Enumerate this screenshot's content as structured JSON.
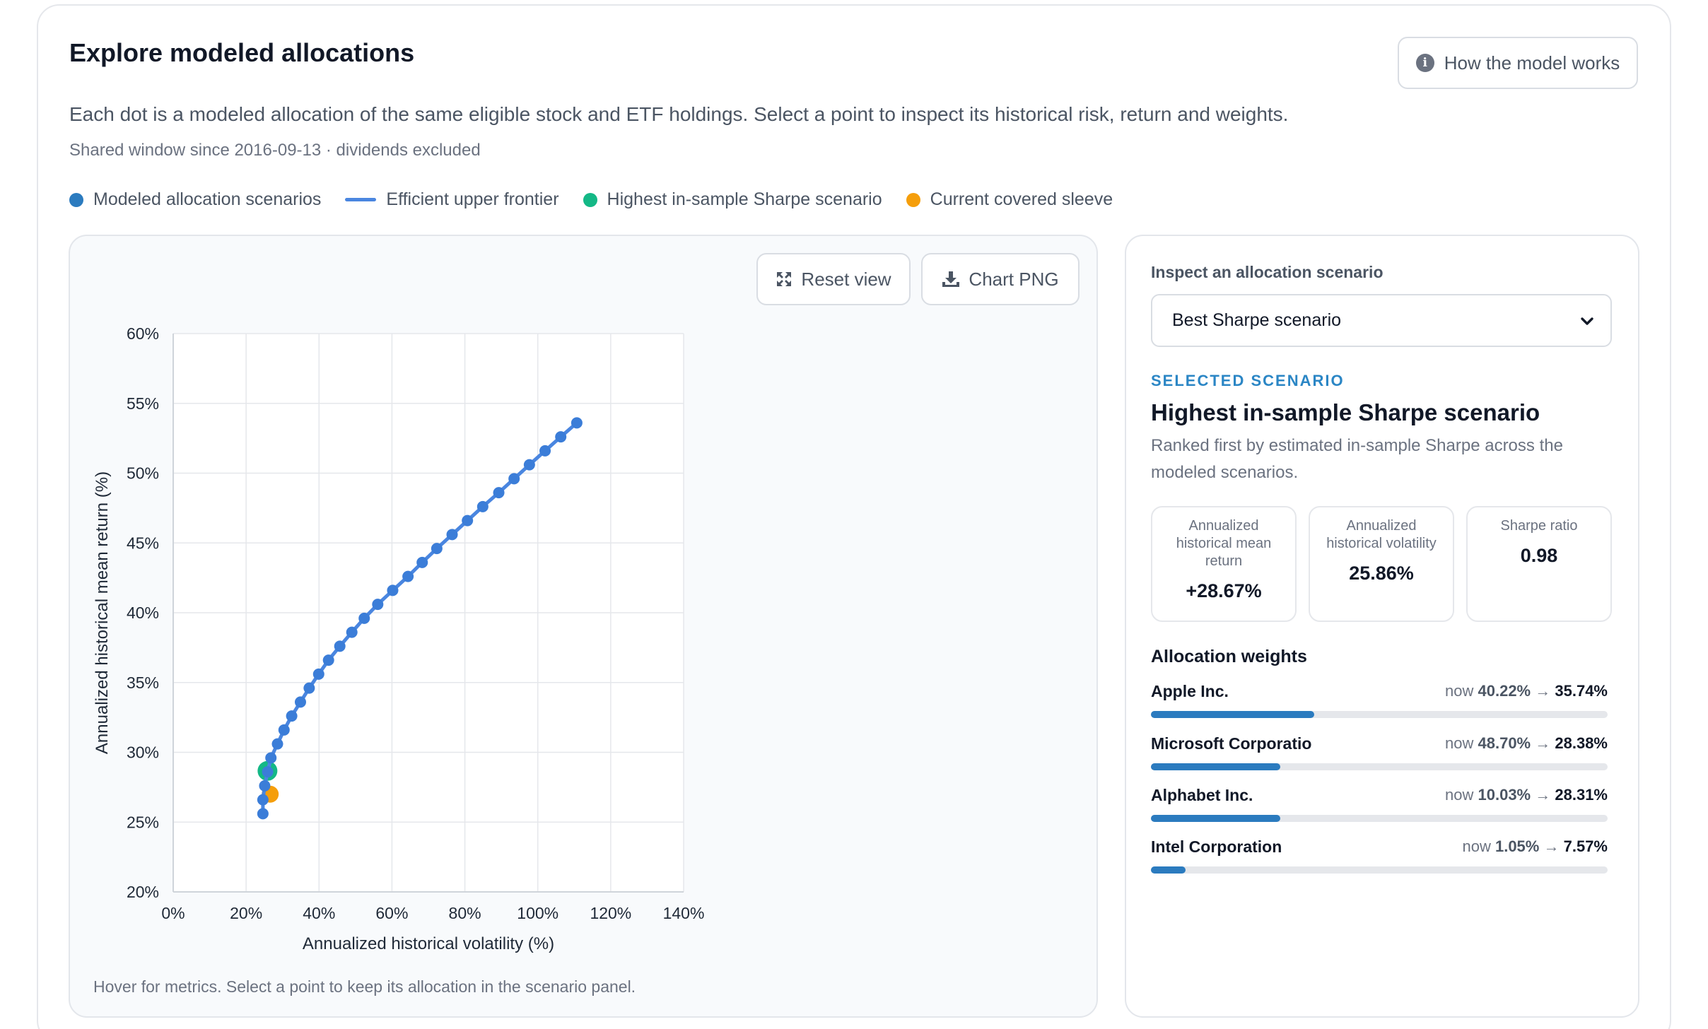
{
  "header": {
    "title": "Explore modeled allocations",
    "help_button": "How the model works",
    "description": "Each dot is a modeled allocation of the same eligible stock and ETF holdings. Select a point to inspect its historical risk, return and weights.",
    "subtitle": "Shared window since 2016-09-13 · dividends excluded"
  },
  "legend": [
    {
      "label": "Modeled allocation scenarios",
      "kind": "dot",
      "color": "#2b7bbf"
    },
    {
      "label": "Efficient upper frontier",
      "kind": "line",
      "color": "#4a86e0"
    },
    {
      "label": "Highest in-sample Sharpe scenario",
      "kind": "dot",
      "color": "#14b886"
    },
    {
      "label": "Current covered sleeve",
      "kind": "dot",
      "color": "#f59e0b"
    }
  ],
  "toolbar": {
    "reset_label": "Reset view",
    "png_label": "Chart PNG"
  },
  "chart_note": "Hover for metrics. Select a point to keep its allocation in the scenario panel.",
  "chart_data": {
    "type": "scatter",
    "xlabel": "Annualized historical volatility (%)",
    "ylabel": "Annualized historical mean return (%)",
    "xlim": [
      0,
      140
    ],
    "ylim": [
      20,
      60
    ],
    "x_ticks": [
      "0%",
      "20%",
      "40%",
      "60%",
      "80%",
      "100%",
      "120%",
      "140%"
    ],
    "y_ticks": [
      "60%",
      "55%",
      "50%",
      "45%",
      "40%",
      "35%",
      "30%",
      "25%",
      "20%"
    ],
    "grid": true,
    "series": [
      {
        "type": "line",
        "points": [
          [
            24.6,
            25.6
          ],
          [
            24.6,
            26.6
          ],
          [
            25.1,
            27.6
          ],
          [
            25.9,
            28.6
          ],
          [
            26.8,
            29.6
          ],
          [
            28.6,
            30.6
          ],
          [
            30.4,
            31.6
          ],
          [
            32.5,
            32.6
          ],
          [
            34.9,
            33.6
          ],
          [
            37.3,
            34.6
          ],
          [
            39.9,
            35.6
          ],
          [
            42.6,
            36.6
          ],
          [
            45.7,
            37.6
          ],
          [
            49.0,
            38.6
          ],
          [
            52.4,
            39.6
          ],
          [
            56.1,
            40.6
          ],
          [
            60.2,
            41.6
          ],
          [
            64.4,
            42.6
          ],
          [
            68.3,
            43.6
          ],
          [
            72.3,
            44.6
          ],
          [
            76.5,
            45.6
          ],
          [
            80.7,
            46.6
          ],
          [
            84.9,
            47.6
          ],
          [
            89.3,
            48.6
          ],
          [
            93.5,
            49.6
          ],
          [
            97.7,
            50.6
          ],
          [
            102.0,
            51.6
          ],
          [
            106.3,
            52.6
          ],
          [
            110.7,
            53.6
          ]
        ]
      },
      {
        "type": "point",
        "points": [
          [
            25.86,
            28.67
          ]
        ]
      },
      {
        "type": "point",
        "points": [
          [
            26.6,
            27.0
          ]
        ]
      }
    ]
  },
  "side": {
    "inspect_label": "Inspect an allocation scenario",
    "select_value": "Best Sharpe scenario",
    "kicker": "SELECTED SCENARIO",
    "title": "Highest in-sample Sharpe scenario",
    "description": "Ranked first by estimated in-sample Sharpe across the modeled scenarios.",
    "metrics": [
      {
        "label": "Annualized historical mean return",
        "value": "+28.67%"
      },
      {
        "label": "Annualized historical volatility",
        "value": "25.86%"
      },
      {
        "label": "Sharpe ratio",
        "value": "0.98"
      }
    ],
    "weights_title": "Allocation weights",
    "weights": [
      {
        "name": "Apple Inc.",
        "now_prefix": "now",
        "now": "40.22%",
        "arrow": "→",
        "target": "35.74%",
        "fraction": 0.3574
      },
      {
        "name": "Microsoft Corporatio",
        "now_prefix": "now",
        "now": "48.70%",
        "arrow": "→",
        "target": "28.38%",
        "fraction": 0.2838
      },
      {
        "name": "Alphabet Inc.",
        "now_prefix": "now",
        "now": "10.03%",
        "arrow": "→",
        "target": "28.31%",
        "fraction": 0.2831
      },
      {
        "name": "Intel Corporation",
        "now_prefix": "now",
        "now": "1.05%",
        "arrow": "→",
        "target": "7.57%",
        "fraction": 0.0757
      }
    ]
  }
}
